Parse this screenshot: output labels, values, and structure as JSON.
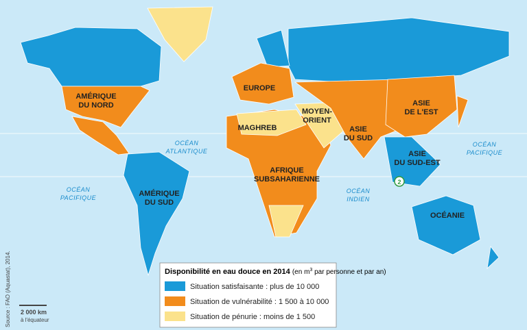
{
  "regions": [
    {
      "lines": [
        "AMÉRIQUE",
        "DU NORD"
      ]
    },
    {
      "lines": [
        "EUROPE"
      ]
    },
    {
      "lines": [
        "MOYEN-",
        "ORIENT"
      ]
    },
    {
      "lines": [
        "ASIE",
        "DU SUD"
      ]
    },
    {
      "lines": [
        "ASIE",
        "DE L'EST"
      ]
    },
    {
      "lines": [
        "MAGHREB"
      ]
    },
    {
      "lines": [
        "AFRIQUE",
        "SUBSAHARIENNE"
      ]
    },
    {
      "lines": [
        "ASIE",
        "DU SUD-EST"
      ]
    },
    {
      "lines": [
        "AMÉRIQUE",
        "DU SUD"
      ]
    },
    {
      "lines": [
        "OCÉANIE"
      ]
    }
  ],
  "oceans": [
    {
      "lines": [
        "OCÉAN",
        "ATLANTIQUE"
      ]
    },
    {
      "lines": [
        "OCÉAN",
        "PACIFIQUE"
      ]
    },
    {
      "lines": [
        "OCÉAN",
        "PACIFIQUE"
      ]
    },
    {
      "lines": [
        "OCÉAN",
        "INDIEN"
      ]
    }
  ],
  "marker": "2",
  "legend": {
    "title": "Disponibilité en eau douce en 2014",
    "unit_before": "(en m",
    "unit_exp": "3",
    "unit_after": " par personne et par an)",
    "items": [
      {
        "label": "Situation satisfaisante : plus de 10 000",
        "color": "#1a9ad8"
      },
      {
        "label": "Situation de vulnérabilité : 1 500 à 10 000",
        "color": "#f28c1c"
      },
      {
        "label": "Situation de pénurie : moins de 1 500",
        "color": "#fbe28c"
      }
    ]
  },
  "source": "Source : FAO (Aquastat), 2014.",
  "scale": {
    "distance": "2 000 km",
    "note": "à l'équateur"
  }
}
